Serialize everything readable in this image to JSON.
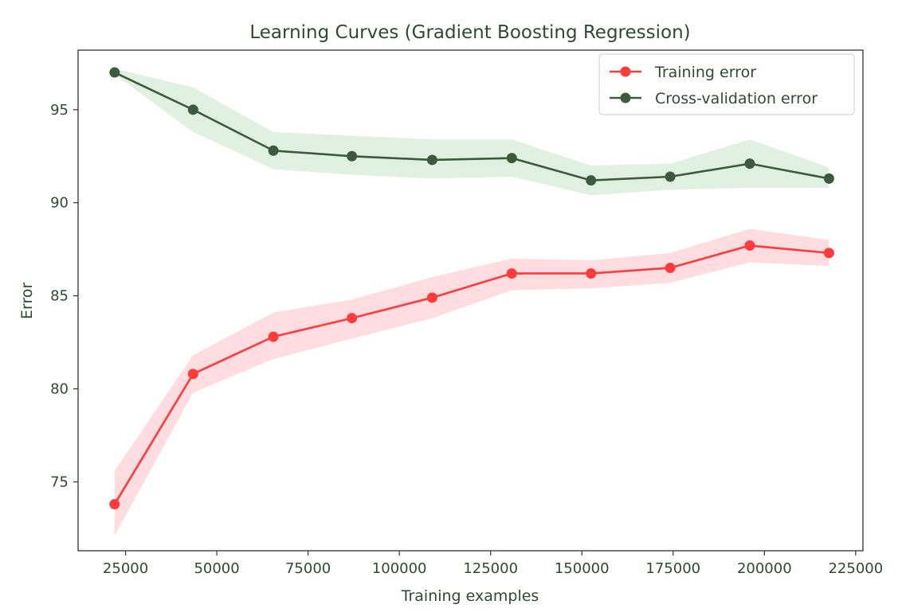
{
  "chart_data": {
    "type": "line",
    "title": "Learning Curves (Gradient Boosting Regression)",
    "xlabel": "Training examples",
    "ylabel": "Error",
    "xlim": [
      12000,
      227000
    ],
    "ylim": [
      71.3,
      98.2
    ],
    "x_ticks": [
      25000,
      50000,
      75000,
      100000,
      125000,
      150000,
      175000,
      200000,
      225000
    ],
    "y_ticks": [
      75,
      80,
      85,
      90,
      95
    ],
    "grid": false,
    "legend_position": "top-right",
    "x": [
      22000,
      43500,
      65500,
      87000,
      109000,
      130800,
      152500,
      174200,
      196000,
      217700
    ],
    "series": [
      {
        "name": "Training error",
        "color": "#ff3b3b",
        "band_color": "#ffd6d9",
        "values": [
          73.8,
          80.8,
          82.8,
          83.8,
          84.9,
          86.2,
          86.2,
          86.5,
          87.7,
          87.3
        ],
        "band_low": [
          72.1,
          79.8,
          81.6,
          82.7,
          83.8,
          85.3,
          85.4,
          85.7,
          86.8,
          86.6
        ],
        "band_high": [
          75.6,
          81.8,
          84.1,
          84.8,
          86.0,
          87.0,
          86.9,
          87.3,
          88.6,
          88.0
        ]
      },
      {
        "name": "Cross-validation error",
        "color": "#3d5a3d",
        "band_color": "#dcefdc",
        "values": [
          97.0,
          95.0,
          92.8,
          92.5,
          92.3,
          92.4,
          91.2,
          91.4,
          92.1,
          91.3
        ],
        "band_low": [
          96.9,
          93.8,
          91.8,
          91.5,
          91.3,
          91.4,
          90.4,
          90.7,
          90.8,
          90.8
        ],
        "band_high": [
          97.2,
          96.2,
          93.8,
          93.6,
          93.4,
          93.4,
          92.0,
          92.1,
          93.4,
          91.9
        ]
      }
    ]
  }
}
